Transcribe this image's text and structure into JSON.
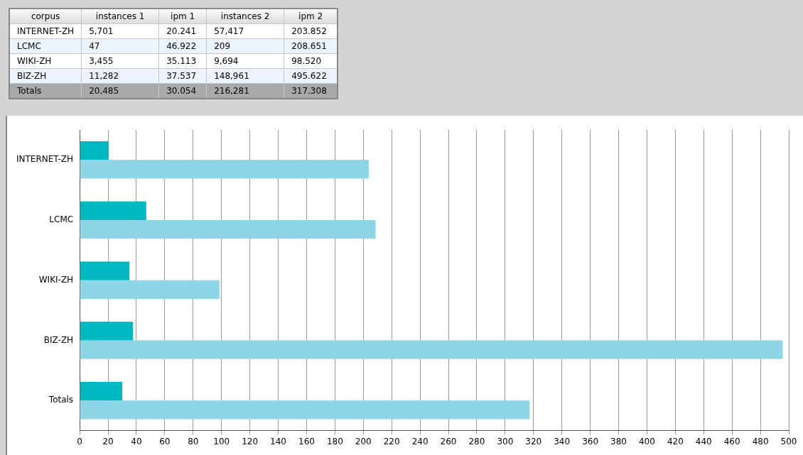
{
  "chart_data": [
    {
      "type": "other",
      "annotations": [
        "corpus",
        "instances 1",
        "ipm 1",
        "instances 2",
        "ipm 2",
        "INTERNET-ZH",
        "5,701",
        "20.241",
        "57,417",
        "203.852",
        "LCMC",
        "47",
        "46.922",
        "209",
        "208.651",
        "WIKI-ZH",
        "3,455",
        "35.113",
        "9,694",
        "98.520",
        "BIZ-ZH",
        "11,282",
        "37.537",
        "148,961",
        "495.622",
        "Totals",
        "20,485",
        "30.054",
        "216,281",
        "317.308"
      ]
    },
    {
      "type": "bar",
      "orientation": "horizontal",
      "categories": [
        "INTERNET-ZH",
        "LCMC",
        "WIKI-ZH",
        "BIZ-ZH",
        "Totals"
      ],
      "series": [
        {
          "color": "#00b8c0",
          "values": [
            20.241,
            46.922,
            35.113,
            37.537,
            30.054
          ]
        },
        {
          "color": "#8fd5e8",
          "values": [
            203.852,
            208.651,
            98.52,
            495.622,
            317.308
          ]
        }
      ],
      "xlim": [
        0,
        500
      ],
      "xticks": [
        0,
        20,
        40,
        60,
        80,
        100,
        120,
        140,
        160,
        180,
        200,
        220,
        240,
        260,
        280,
        300,
        320,
        340,
        360,
        380,
        400,
        420,
        440,
        460,
        480,
        500
      ],
      "grid": "x",
      "legend": false
    }
  ]
}
